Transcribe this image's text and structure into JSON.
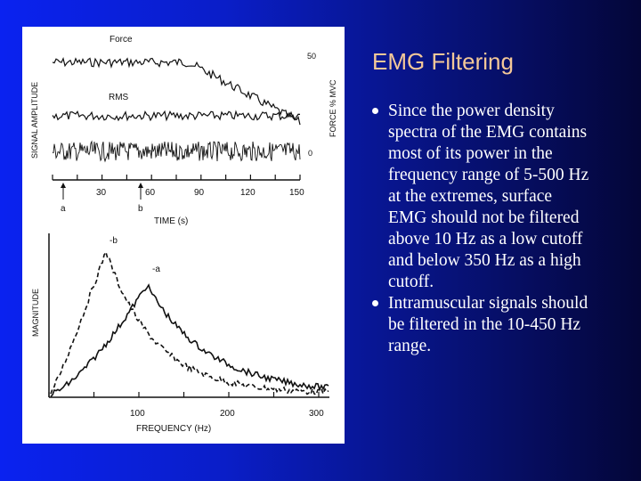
{
  "slide": {
    "title": "EMG Filtering",
    "bullets": [
      "Since the power density spectra of the EMG contains most of its power in the frequency range of 5-500 Hz at the extremes, surface EMG should not be filtered above 10 Hz as a low cutoff and below 350 Hz as a high cutoff.",
      "Intramuscular signals should be filtered in the 10-450 Hz range."
    ]
  },
  "figure": {
    "top_plot": {
      "trace_labels": [
        "Force",
        "RMS"
      ],
      "y_label_left": "SIGNAL AMPLITUDE",
      "y_label_right": "FORCE % MVC",
      "right_ticks": [
        "50",
        "0"
      ],
      "x_label": "TIME (s)",
      "x_ticks": [
        "30",
        "60",
        "90",
        "120",
        "150"
      ],
      "markers": [
        "a",
        "b"
      ]
    },
    "bottom_plot": {
      "y_label": "MAGNITUDE",
      "x_label": "FREQUENCY (Hz)",
      "x_ticks": [
        "100",
        "200",
        "300"
      ],
      "curve_labels": [
        "-b",
        "-a"
      ]
    }
  }
}
